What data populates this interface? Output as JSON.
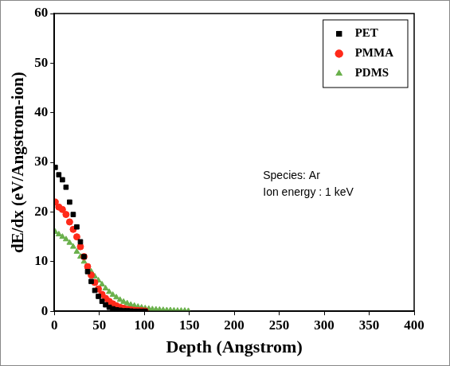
{
  "chart_data": {
    "type": "scatter",
    "x_label": "Depth (Angstrom)",
    "y_label": "dE/dx (eV/Angstrom-ion)",
    "annotations": [
      "Species: Ar",
      "Ion energy : 1 keV"
    ],
    "xlim": [
      0,
      400
    ],
    "xticks": [
      0,
      50,
      100,
      150,
      200,
      250,
      300,
      350,
      400
    ],
    "ylim": [
      0,
      60
    ],
    "yticks": [
      0,
      10,
      20,
      30,
      40,
      50,
      60
    ],
    "grid": false,
    "legend": "upper right",
    "series": [
      {
        "name": "PET",
        "color": "#000000",
        "marker": "square",
        "x": [
          1,
          5,
          9,
          13,
          17,
          21,
          25,
          29,
          33,
          37,
          41,
          45,
          49,
          53,
          57,
          61,
          65,
          69,
          73,
          77,
          81,
          85,
          89,
          93,
          97,
          101
        ],
        "values": [
          29,
          27.5,
          26.5,
          25,
          22,
          19.5,
          17,
          14,
          11,
          8,
          6,
          4.2,
          3,
          2,
          1.3,
          0.8,
          0.5,
          0.3,
          0.2,
          0.1,
          0.1,
          0.05,
          0,
          0,
          0,
          0
        ]
      },
      {
        "name": "PMMA",
        "color": "#ff2a1a",
        "marker": "circle",
        "x": [
          1,
          5,
          9,
          13,
          17,
          21,
          25,
          29,
          33,
          37,
          41,
          45,
          49,
          53,
          57,
          61,
          65,
          69,
          73,
          77,
          81,
          85,
          89,
          93,
          97,
          101
        ],
        "values": [
          22,
          21,
          20.5,
          19.5,
          18,
          16.5,
          15,
          13,
          11,
          9,
          7.3,
          5.8,
          4.5,
          3.4,
          2.6,
          2,
          1.5,
          1.1,
          0.8,
          0.6,
          0.4,
          0.3,
          0.2,
          0.15,
          0.1,
          0.05
        ]
      },
      {
        "name": "PDMS",
        "color": "#6ab04c",
        "marker": "triangle",
        "x": [
          1,
          5,
          9,
          13,
          17,
          21,
          25,
          29,
          33,
          37,
          41,
          45,
          49,
          53,
          57,
          61,
          65,
          69,
          73,
          77,
          81,
          85,
          89,
          93,
          97,
          101,
          105,
          109,
          113,
          117,
          121,
          125,
          129,
          133,
          137,
          141,
          145,
          149
        ],
        "values": [
          16,
          15.5,
          15,
          14.5,
          13.8,
          13,
          12,
          11,
          10,
          9,
          8,
          7,
          6.2,
          5.4,
          4.6,
          3.9,
          3.3,
          2.8,
          2.3,
          1.9,
          1.6,
          1.3,
          1.1,
          0.9,
          0.75,
          0.6,
          0.5,
          0.4,
          0.35,
          0.3,
          0.25,
          0.2,
          0.2,
          0.15,
          0.1,
          0.1,
          0.1,
          0.05
        ]
      }
    ]
  }
}
